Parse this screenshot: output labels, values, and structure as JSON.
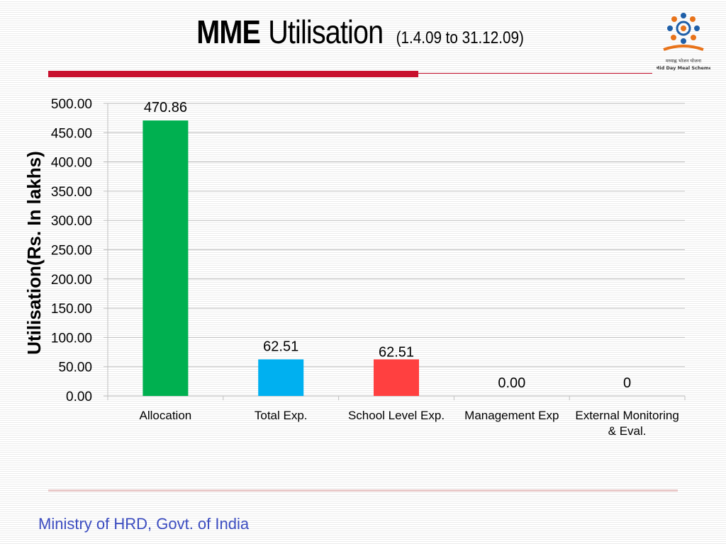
{
  "slide": {
    "title_bold": "MME",
    "title_rest": "Utilisation",
    "title_period": "(1.4.09 to 31.12.09)",
    "logo_text_1": "मध्याह्न भोजन योजना",
    "logo_text_2": "Mid Day Meal Scheme",
    "footer": "Ministry of HRD, Govt. of India"
  },
  "colors": {
    "accent_red": "#c8102e",
    "footer_text": "#3b4cc0"
  },
  "chart_data": {
    "type": "bar",
    "title": "",
    "xlabel": "",
    "ylabel": "Utilisation(Rs. In lakhs)",
    "ylim": [
      0,
      500
    ],
    "yticks": [
      "0.00",
      "50.00",
      "100.00",
      "150.00",
      "200.00",
      "250.00",
      "300.00",
      "350.00",
      "400.00",
      "450.00",
      "500.00"
    ],
    "grid": true,
    "legend": "none",
    "categories": [
      [
        "Allocation"
      ],
      [
        "Total Exp."
      ],
      [
        "School Level Exp."
      ],
      [
        "Management Exp"
      ],
      [
        "External Monitoring",
        "& Eval."
      ]
    ],
    "values": [
      470.86,
      62.51,
      62.51,
      0,
      0
    ],
    "data_labels": [
      "470.86",
      "62.51",
      "62.51",
      "0.00",
      "0"
    ],
    "bar_colors": [
      "#00b050",
      "#00b0f0",
      "#ff4040",
      "#7f7f7f",
      "#7f7f7f"
    ]
  }
}
